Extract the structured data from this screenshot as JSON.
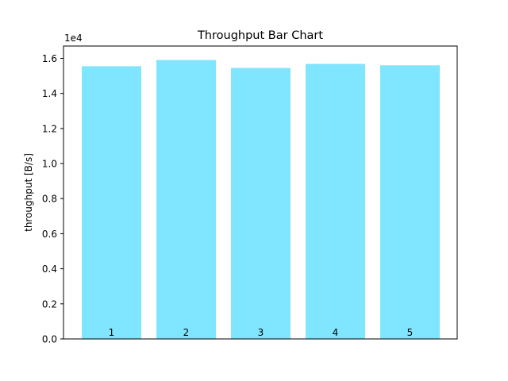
{
  "chart_data": {
    "type": "bar",
    "title": "Throughput Bar Chart",
    "xlabel": "",
    "ylabel": "throughput [B/s]",
    "y_offset_label": "1e4",
    "categories": [
      "1",
      "2",
      "3",
      "4",
      "5"
    ],
    "values": [
      15550,
      15900,
      15450,
      15680,
      15600
    ],
    "ylim": [
      0,
      16700
    ],
    "yticks": [
      0,
      2000,
      4000,
      6000,
      8000,
      10000,
      12000,
      14000,
      16000
    ],
    "ytick_labels": [
      "0.0",
      "0.2",
      "0.4",
      "0.6",
      "0.8",
      "1.0",
      "1.2",
      "1.4",
      "1.6"
    ],
    "bar_color": "#80e5ff",
    "grid": false,
    "legend": "none"
  }
}
